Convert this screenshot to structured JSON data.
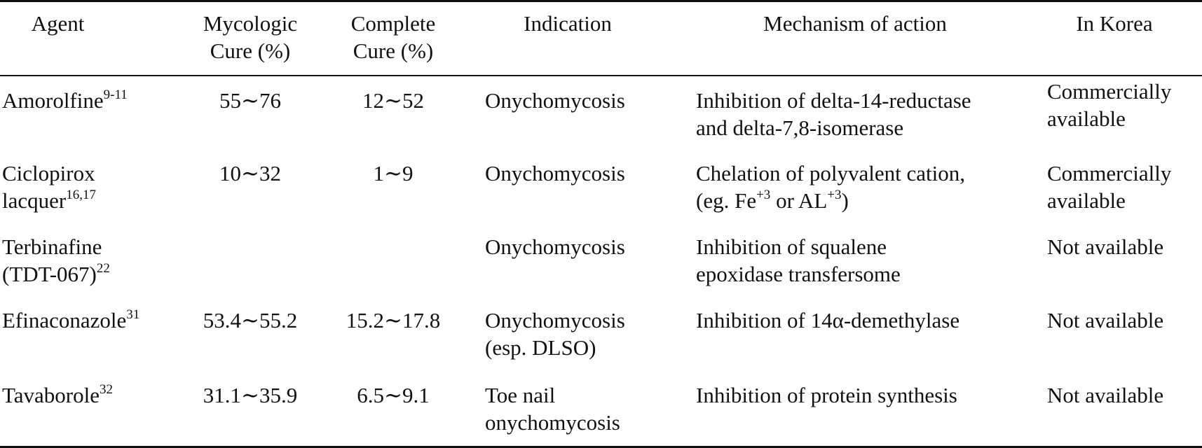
{
  "headers": {
    "agent": "Agent",
    "mycologic_l1": "Mycologic",
    "mycologic_l2": "Cure (%)",
    "complete_l1": "Complete",
    "complete_l2": "Cure (%)",
    "indication": "Indication",
    "mechanism": "Mechanism of action",
    "korea": "In Korea"
  },
  "rows": [
    {
      "agent_l1": "Amorolfine",
      "agent_ref": "9-11",
      "agent_l2": "",
      "mycologic": "55∼76",
      "complete": "12∼52",
      "indication_l1": "Onychomycosis",
      "indication_l2": "",
      "mechanism_l1": "Inhibition of delta-14-reductase",
      "mechanism_l2": "and delta-7,8-isomerase",
      "korea_l1": "Commercially",
      "korea_l2": "available"
    },
    {
      "agent_l1": "Ciclopirox",
      "agent_l2": "lacquer",
      "agent_ref": "16,17",
      "mycologic": "10∼32",
      "complete": "1∼9",
      "indication_l1": "Onychomycosis",
      "indication_l2": "",
      "mechanism_l1": "Chelation of polyvalent cation,",
      "mechanism_l2_a": "(eg. Fe",
      "mechanism_l2_sup1": "+3",
      "mechanism_l2_b": " or AL",
      "mechanism_l2_sup2": "+3",
      "mechanism_l2_c": ")",
      "korea_l1": "Commercially",
      "korea_l2": "available"
    },
    {
      "agent_l1": "Terbinafine",
      "agent_l2": "(TDT-067)",
      "agent_ref": "22",
      "mycologic": "",
      "complete": "",
      "indication_l1": "Onychomycosis",
      "indication_l2": "",
      "mechanism_l1": "Inhibition of squalene",
      "mechanism_l2": "epoxidase transfersome",
      "korea_l1": "Not available",
      "korea_l2": ""
    },
    {
      "agent_l1": "Efinaconazole",
      "agent_ref": "31",
      "agent_l2": "",
      "mycologic": "53.4∼55.2",
      "complete": "15.2∼17.8",
      "indication_l1": "Onychomycosis",
      "indication_l2": "(esp. DLSO)",
      "mechanism_l1": "Inhibition of 14α-demethylase",
      "mechanism_l2": "",
      "korea_l1": "Not available",
      "korea_l2": ""
    },
    {
      "agent_l1": "Tavaborole",
      "agent_ref": "32",
      "agent_l2": "",
      "mycologic": "31.1∼35.9",
      "complete": "6.5∼9.1",
      "indication_l1": "Toe nail",
      "indication_l2": "onychomycosis",
      "mechanism_l1": "Inhibition of protein synthesis",
      "mechanism_l2": "",
      "korea_l1": "Not available",
      "korea_l2": ""
    }
  ]
}
